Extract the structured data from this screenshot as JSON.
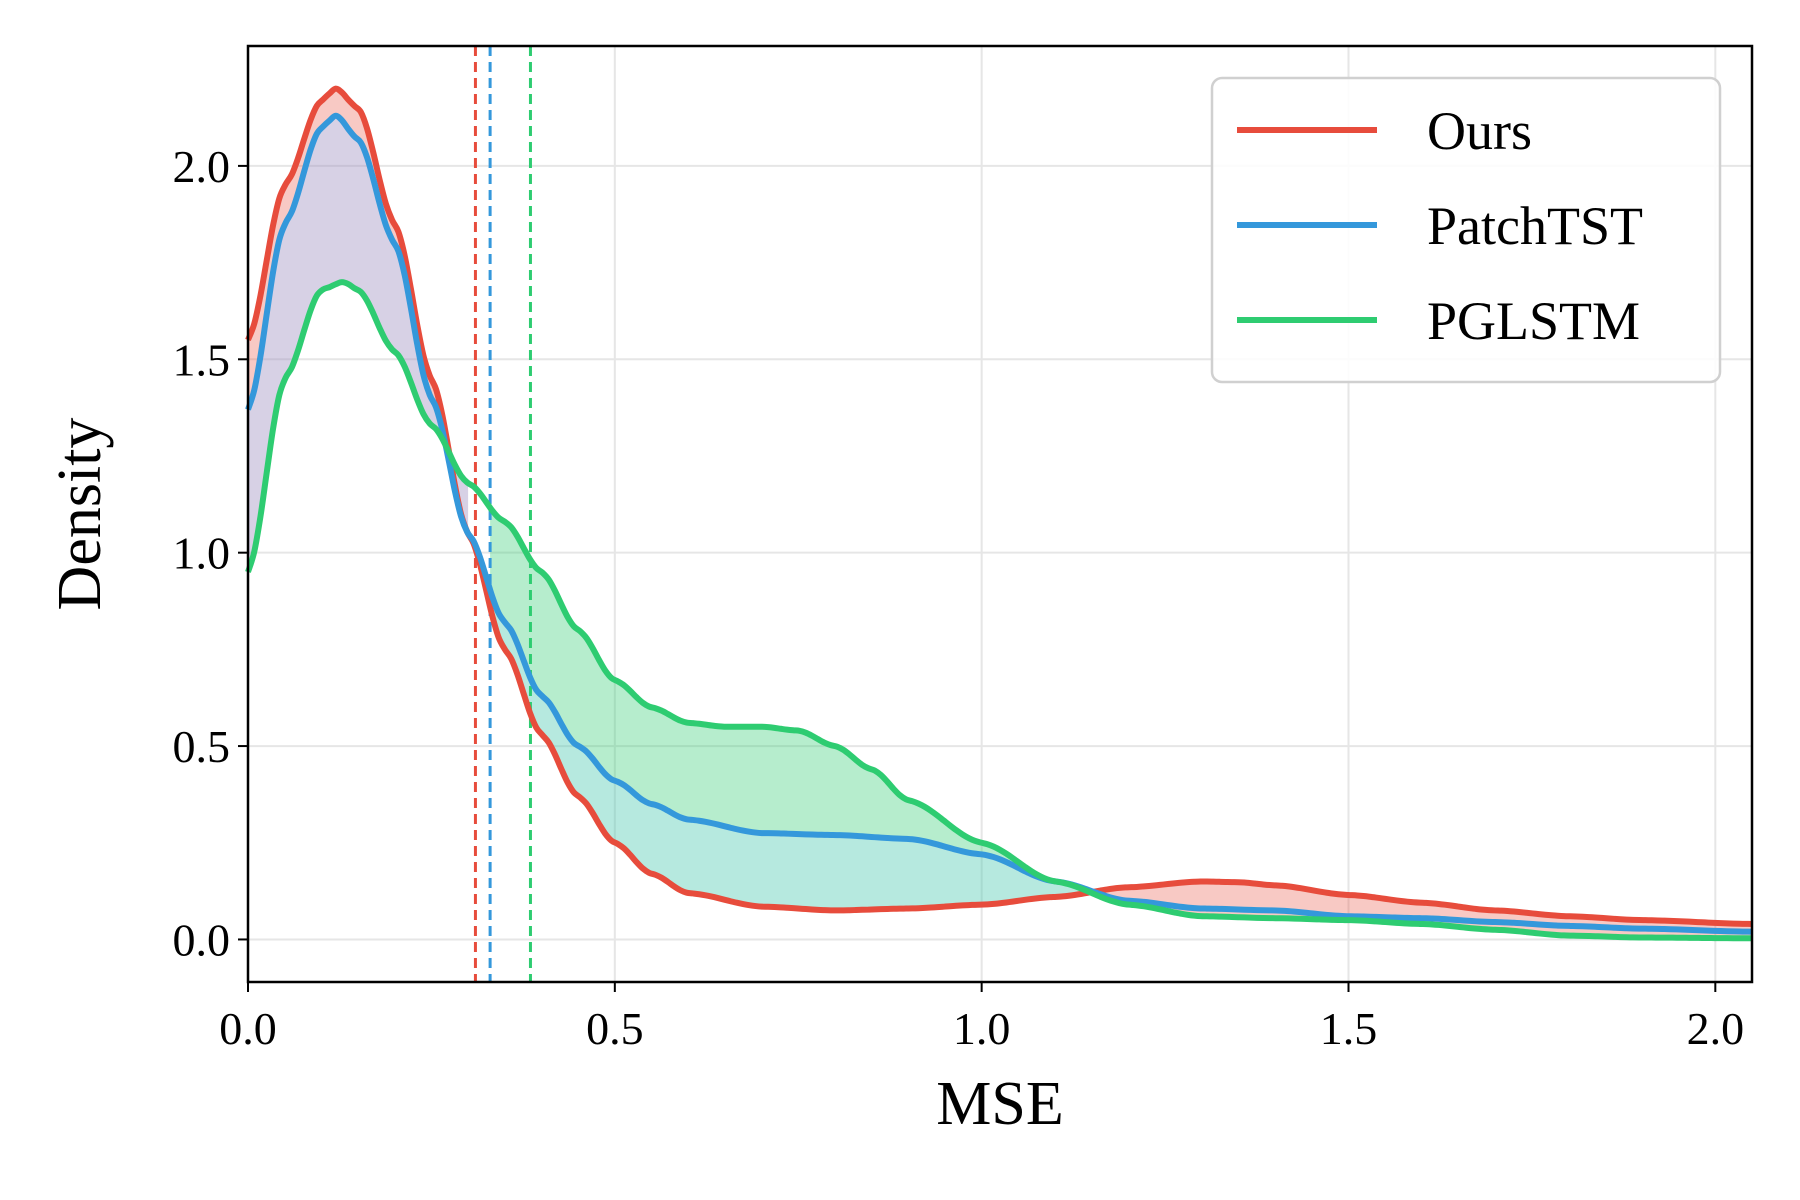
{
  "chart_data": {
    "type": "line",
    "title": "",
    "xlabel": "MSE",
    "ylabel": "Density",
    "xlim": [
      0.0,
      2.05
    ],
    "ylim": [
      -0.11,
      2.31
    ],
    "xticks": [
      "0.0",
      "0.5",
      "1.0",
      "1.5",
      "2.0"
    ],
    "yticks": [
      "0.0",
      "0.5",
      "1.0",
      "1.5",
      "2.0"
    ],
    "grid": true,
    "legend_position": "top-right",
    "colors": {
      "red": "#e74c3c",
      "blue": "#3498db",
      "green": "#2ecc71"
    },
    "series": [
      {
        "name": "Ours",
        "color": "#e74c3c",
        "mean": 0.31,
        "x": [
          0.0,
          0.05,
          0.1,
          0.12,
          0.15,
          0.2,
          0.25,
          0.3,
          0.35,
          0.4,
          0.45,
          0.5,
          0.55,
          0.6,
          0.7,
          0.8,
          0.9,
          1.0,
          1.1,
          1.2,
          1.3,
          1.35,
          1.4,
          1.5,
          1.6,
          1.7,
          1.8,
          1.9,
          2.05
        ],
        "values": [
          1.55,
          1.95,
          2.17,
          2.2,
          2.15,
          1.85,
          1.45,
          1.05,
          0.75,
          0.53,
          0.37,
          0.25,
          0.17,
          0.12,
          0.085,
          0.075,
          0.08,
          0.09,
          0.11,
          0.135,
          0.15,
          0.148,
          0.14,
          0.115,
          0.095,
          0.075,
          0.06,
          0.05,
          0.04
        ]
      },
      {
        "name": "PatchTST",
        "color": "#3498db",
        "mean": 0.33,
        "x": [
          0.0,
          0.05,
          0.1,
          0.12,
          0.15,
          0.2,
          0.25,
          0.3,
          0.35,
          0.4,
          0.45,
          0.5,
          0.55,
          0.6,
          0.7,
          0.8,
          0.9,
          1.0,
          1.1,
          1.2,
          1.3,
          1.4,
          1.5,
          1.6,
          1.7,
          1.8,
          1.9,
          2.05
        ],
        "values": [
          1.37,
          1.85,
          2.1,
          2.13,
          2.07,
          1.8,
          1.4,
          1.05,
          0.82,
          0.63,
          0.5,
          0.41,
          0.35,
          0.31,
          0.275,
          0.27,
          0.26,
          0.22,
          0.15,
          0.1,
          0.08,
          0.075,
          0.06,
          0.055,
          0.045,
          0.035,
          0.028,
          0.02
        ]
      },
      {
        "name": "PGLSTM",
        "color": "#2ecc71",
        "mean": 0.385,
        "x": [
          0.0,
          0.05,
          0.1,
          0.13,
          0.15,
          0.2,
          0.25,
          0.3,
          0.35,
          0.4,
          0.45,
          0.5,
          0.55,
          0.6,
          0.65,
          0.7,
          0.75,
          0.8,
          0.85,
          0.9,
          1.0,
          1.1,
          1.2,
          1.3,
          1.4,
          1.5,
          1.6,
          1.7,
          1.8,
          1.9,
          2.05
        ],
        "values": [
          0.95,
          1.45,
          1.68,
          1.7,
          1.68,
          1.52,
          1.33,
          1.18,
          1.08,
          0.95,
          0.8,
          0.67,
          0.6,
          0.56,
          0.55,
          0.55,
          0.54,
          0.5,
          0.44,
          0.36,
          0.25,
          0.15,
          0.09,
          0.06,
          0.055,
          0.05,
          0.04,
          0.025,
          0.01,
          0.005,
          0.003
        ]
      }
    ],
    "fills": [
      {
        "between": [
          "Ours",
          "PatchTST"
        ],
        "x_range": [
          0.0,
          0.33
        ],
        "color": "#e74c3c",
        "opacity": 0.3
      },
      {
        "between": [
          "PatchTST",
          "PGLSTM"
        ],
        "x_range": [
          0.0,
          0.3
        ],
        "color": "#9b8cbf",
        "opacity": 0.4
      },
      {
        "between": [
          "Ours",
          "PatchTST"
        ],
        "x_range": [
          0.33,
          1.15
        ],
        "color": "#48c9b0",
        "opacity": 0.4
      },
      {
        "between": [
          "PatchTST",
          "PGLSTM"
        ],
        "x_range": [
          0.33,
          1.05
        ],
        "color": "#2ecc71",
        "opacity": 0.35
      },
      {
        "between": [
          "Ours",
          "PGLSTM"
        ],
        "x_range": [
          1.15,
          2.05
        ],
        "color": "#e74c3c",
        "opacity": 0.3
      }
    ]
  }
}
